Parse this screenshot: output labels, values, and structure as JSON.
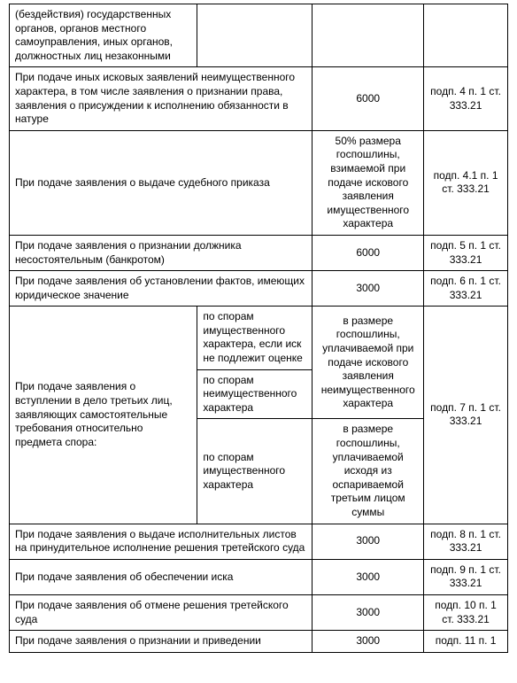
{
  "rows": {
    "r0": {
      "desc": "(бездействия) государственных органов, органов местного самоуправления, иных органов, должностных лиц незаконными",
      "c2": "",
      "amount": "",
      "ref": ""
    },
    "r1": {
      "desc": "При подаче иных исковых заявлений неимущественного характера, в том числе заявления о признании права, заявления о присуждении к исполнению обязанности в натуре",
      "amount": "6000",
      "ref": "подп. 4 п. 1 ст. 333.21"
    },
    "r2": {
      "desc": "При подаче заявления о выдаче судебного приказа",
      "amount": "50% размера госпошлины, взимаемой при подаче искового заявления имущественного характера",
      "ref": "подп. 4.1 п. 1 ст. 333.21"
    },
    "r3": {
      "desc": "При подаче заявления о признании должника несостоятельным (банкротом)",
      "amount": "6000",
      "ref": "подп. 5 п. 1 ст. 333.21"
    },
    "r4": {
      "desc": "При подаче заявления об установлении фактов, имеющих юридическое значение",
      "amount": "3000",
      "ref": "подп. 6 п. 1 ст. 333.21"
    },
    "r5": {
      "desc": "При подаче заявления о вступлении в дело третьих лиц, заявляющих самостоятельные требования относительно предмета спора:",
      "sub_a": "по спорам имущественного характера, если иск не подлежит оценке",
      "sub_b": "по спорам неимущественного характера",
      "sub_c": "по спорам имущественного характера",
      "amount_ab": "в размере госпошлины, уплачиваемой при подаче искового заявления неимущественного характера",
      "amount_c": "в размере госпошлины, уплачиваемой исходя из оспариваемой третьим лицом суммы",
      "ref": "подп. 7 п. 1 ст. 333.21"
    },
    "r6": {
      "desc": "При подаче заявления о выдаче исполнительных листов на принудительное исполнение решения третейского суда",
      "amount": "3000",
      "ref": "подп. 8 п. 1 ст. 333.21"
    },
    "r7": {
      "desc": "При подаче заявления об обеспечении иска",
      "amount": "3000",
      "ref": "подп. 9 п. 1 ст. 333.21"
    },
    "r8": {
      "desc": "При подаче заявления об отмене решения третейского суда",
      "amount": "3000",
      "ref": "подп. 10 п. 1 ст. 333.21"
    },
    "r9": {
      "desc": "При подаче заявления о признании и приведении",
      "amount": "3000",
      "ref": "подп. 11 п. 1"
    }
  }
}
